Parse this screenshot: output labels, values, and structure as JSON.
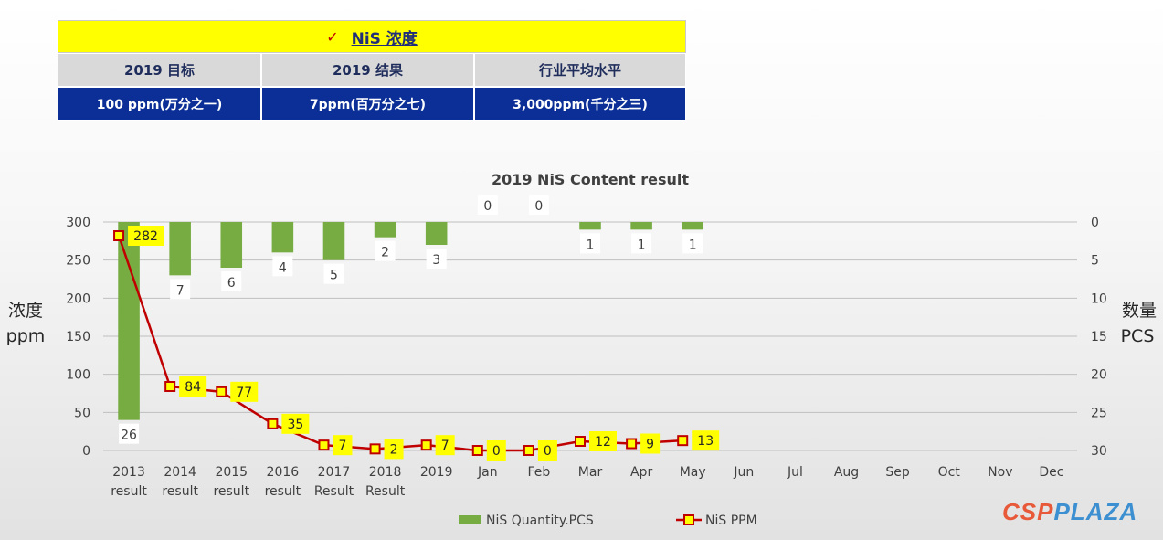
{
  "table": {
    "check_icon": "✓",
    "title": "NiS 浓度",
    "headers": [
      "2019 目标",
      "2019 结果",
      "行业平均水平"
    ],
    "values": [
      "100 ppm(万分之一)",
      "7ppm(百万分之七)",
      "3,000ppm(千分之三)"
    ]
  },
  "logo": {
    "part1": "CSP",
    "part2": "PLAZA"
  },
  "chart_data": {
    "type": "bar+line",
    "title": "2019 NiS Content result",
    "categories": [
      [
        "2013",
        "result"
      ],
      [
        "2014",
        "result"
      ],
      [
        "2015",
        "result"
      ],
      [
        "2016",
        "result"
      ],
      [
        "2017",
        "Result"
      ],
      [
        "2018",
        "Result"
      ],
      [
        "2019"
      ],
      [
        "Jan"
      ],
      [
        "Feb"
      ],
      [
        "Mar"
      ],
      [
        "Apr"
      ],
      [
        "May"
      ],
      [
        "Jun"
      ],
      [
        "Jul"
      ],
      [
        "Aug"
      ],
      [
        "Sep"
      ],
      [
        "Oct"
      ],
      [
        "Nov"
      ],
      [
        "Dec"
      ]
    ],
    "y_left": {
      "label": [
        "浓度",
        "ppm"
      ],
      "min": 0,
      "max": 300,
      "ticks": [
        0,
        50,
        100,
        150,
        200,
        250,
        300
      ]
    },
    "y_right": {
      "label": [
        "数量",
        "PCS"
      ],
      "min": 0,
      "max": 30,
      "reversed": true,
      "ticks": [
        0,
        5,
        10,
        15,
        20,
        25,
        30
      ]
    },
    "series": [
      {
        "name": "NiS Quantity.PCS",
        "type": "bar",
        "axis": "right",
        "color": "#77ac43",
        "values": [
          26,
          7,
          6,
          4,
          5,
          2,
          3,
          0,
          0,
          1,
          1,
          1,
          null,
          null,
          null,
          null,
          null,
          null,
          null
        ]
      },
      {
        "name": "NiS PPM",
        "type": "line",
        "axis": "left",
        "color": "#c00000",
        "marker_fill": "#ffff00",
        "values": [
          282,
          84,
          77,
          35,
          7,
          2,
          7,
          0,
          0,
          12,
          9,
          13,
          null,
          null,
          null,
          null,
          null,
          null,
          null
        ]
      }
    ],
    "grid": true,
    "legend": "bottom"
  }
}
